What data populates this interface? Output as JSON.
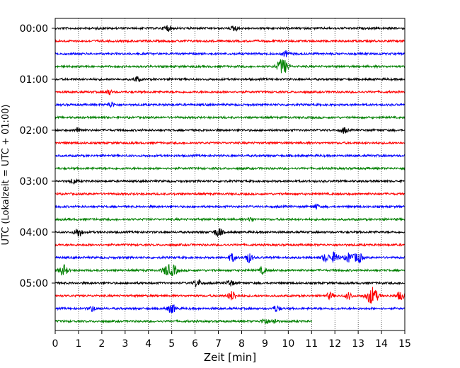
{
  "chart_data": {
    "type": "line",
    "title": "",
    "xlabel": "Zeit  [min]",
    "ylabel": "UTC (Lokalzeit = UTC + 01:00)",
    "xlim": [
      0,
      15
    ],
    "x_ticks": [
      "0",
      "1",
      "2",
      "3",
      "4",
      "5",
      "6",
      "7",
      "8",
      "9",
      "10",
      "11",
      "12",
      "13",
      "14",
      "15"
    ],
    "y_ticks": [
      {
        "label": "00:00",
        "trace_index": 0
      },
      {
        "label": "01:00",
        "trace_index": 4
      },
      {
        "label": "02:00",
        "trace_index": 8
      },
      {
        "label": "03:00",
        "trace_index": 12
      },
      {
        "label": "04:00",
        "trace_index": 16
      },
      {
        "label": "05:00",
        "trace_index": 20
      }
    ],
    "grid": "vertical dotted lines at each minute",
    "trace_colors": [
      "#000000",
      "#ff0000",
      "#0000ff",
      "#008000"
    ],
    "traces": [
      {
        "start": "00:00",
        "end_min": 15,
        "color": "#000000",
        "events": [
          {
            "t": 4.8,
            "amp": 0.5
          },
          {
            "t": 7.7,
            "amp": 0.4
          }
        ]
      },
      {
        "start": "00:15",
        "end_min": 15,
        "color": "#ff0000",
        "events": []
      },
      {
        "start": "00:30",
        "end_min": 15,
        "color": "#0000ff",
        "events": [
          {
            "t": 9.9,
            "amp": 0.4
          }
        ]
      },
      {
        "start": "00:45",
        "end_min": 15,
        "color": "#008000",
        "events": [
          {
            "t": 9.75,
            "amp": 1.2
          }
        ]
      },
      {
        "start": "01:00",
        "end_min": 15,
        "color": "#000000",
        "events": [
          {
            "t": 3.5,
            "amp": 0.4
          }
        ]
      },
      {
        "start": "01:15",
        "end_min": 15,
        "color": "#ff0000",
        "events": [
          {
            "t": 2.3,
            "amp": 0.4
          }
        ]
      },
      {
        "start": "01:30",
        "end_min": 15,
        "color": "#0000ff",
        "events": [
          {
            "t": 2.4,
            "amp": 0.4
          }
        ]
      },
      {
        "start": "01:45",
        "end_min": 15,
        "color": "#008000",
        "events": []
      },
      {
        "start": "02:00",
        "end_min": 15,
        "color": "#000000",
        "events": [
          {
            "t": 1.0,
            "amp": 0.4
          },
          {
            "t": 12.4,
            "amp": 0.45
          }
        ]
      },
      {
        "start": "02:15",
        "end_min": 15,
        "color": "#ff0000",
        "events": []
      },
      {
        "start": "02:30",
        "end_min": 15,
        "color": "#0000ff",
        "events": []
      },
      {
        "start": "02:45",
        "end_min": 15,
        "color": "#008000",
        "events": []
      },
      {
        "start": "03:00",
        "end_min": 15,
        "color": "#000000",
        "events": [
          {
            "t": 0.8,
            "amp": 0.4
          }
        ]
      },
      {
        "start": "03:15",
        "end_min": 15,
        "color": "#ff0000",
        "events": []
      },
      {
        "start": "03:30",
        "end_min": 15,
        "color": "#0000ff",
        "events": [
          {
            "t": 11.2,
            "amp": 0.35
          }
        ]
      },
      {
        "start": "03:45",
        "end_min": 15,
        "color": "#008000",
        "events": [
          {
            "t": 8.4,
            "amp": 0.3
          }
        ]
      },
      {
        "start": "04:00",
        "end_min": 15,
        "color": "#000000",
        "events": [
          {
            "t": 1.0,
            "amp": 0.7
          },
          {
            "t": 7.0,
            "amp": 0.7
          }
        ]
      },
      {
        "start": "04:15",
        "end_min": 15,
        "color": "#ff0000",
        "events": []
      },
      {
        "start": "04:30",
        "end_min": 15,
        "color": "#0000ff",
        "events": [
          {
            "t": 7.6,
            "amp": 0.6
          },
          {
            "t": 8.3,
            "amp": 0.7
          },
          {
            "t": 11.6,
            "amp": 0.6
          },
          {
            "t": 12.0,
            "amp": 0.8
          },
          {
            "t": 12.6,
            "amp": 0.7
          },
          {
            "t": 13.0,
            "amp": 0.8
          }
        ]
      },
      {
        "start": "04:45",
        "end_min": 15,
        "color": "#008000",
        "events": [
          {
            "t": 0.35,
            "amp": 0.8
          },
          {
            "t": 4.8,
            "amp": 0.8
          },
          {
            "t": 5.1,
            "amp": 0.7
          },
          {
            "t": 8.9,
            "amp": 0.5
          }
        ]
      },
      {
        "start": "05:00",
        "end_min": 15,
        "color": "#000000",
        "events": [
          {
            "t": 6.1,
            "amp": 0.6
          },
          {
            "t": 7.5,
            "amp": 0.5
          }
        ]
      },
      {
        "start": "05:15",
        "end_min": 15,
        "color": "#ff0000",
        "events": [
          {
            "t": 7.6,
            "amp": 0.7
          },
          {
            "t": 11.8,
            "amp": 0.5
          },
          {
            "t": 12.6,
            "amp": 0.5
          },
          {
            "t": 13.6,
            "amp": 1.3
          },
          {
            "t": 14.8,
            "amp": 0.6
          }
        ]
      },
      {
        "start": "05:30",
        "end_min": 15,
        "color": "#0000ff",
        "events": [
          {
            "t": 1.6,
            "amp": 0.4
          },
          {
            "t": 5.0,
            "amp": 0.7
          },
          {
            "t": 9.5,
            "amp": 0.5
          }
        ]
      },
      {
        "start": "05:45",
        "end_min": 11.0,
        "color": "#008000",
        "events": [
          {
            "t": 9.0,
            "amp": 0.5
          },
          {
            "t": 9.4,
            "amp": 0.4
          }
        ]
      }
    ]
  }
}
